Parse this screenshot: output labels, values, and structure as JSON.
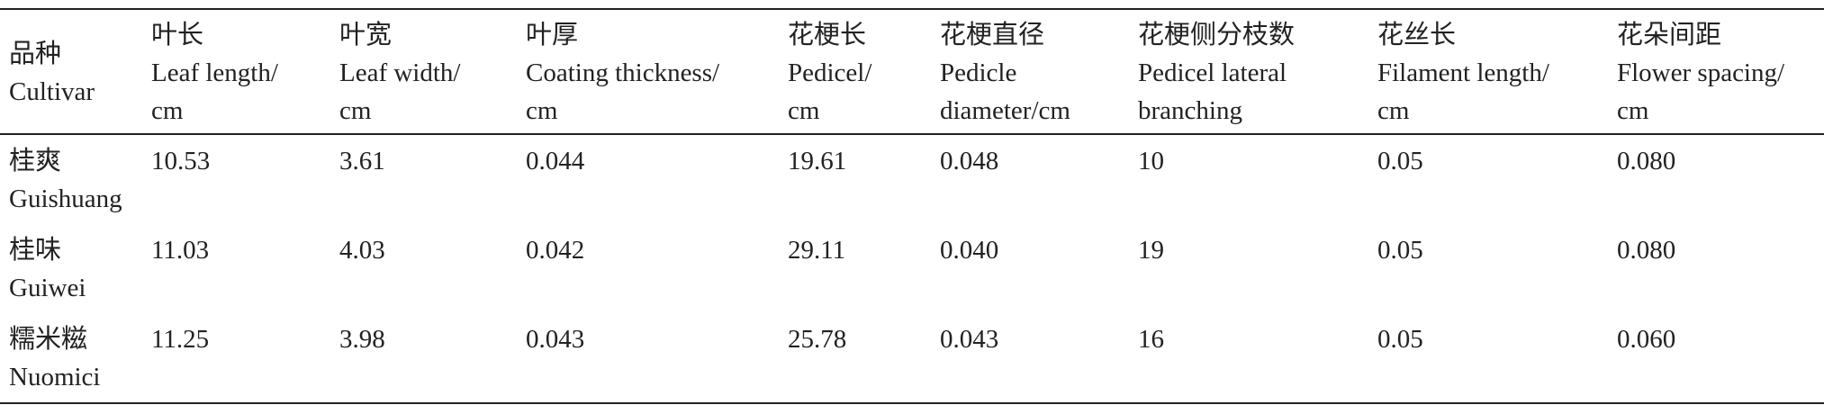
{
  "table": {
    "header": [
      [
        "品种",
        "Cultivar"
      ],
      [
        "叶长",
        "Leaf length/",
        "cm"
      ],
      [
        "叶宽",
        "Leaf width/",
        "cm"
      ],
      [
        "叶厚",
        "Coating thickness/",
        "cm"
      ],
      [
        "花梗长",
        "Pedicel/",
        "cm"
      ],
      [
        "花梗直径",
        "Pedicle",
        "diameter/cm"
      ],
      [
        "花梗侧分枝数",
        "Pedicel lateral",
        "branching"
      ],
      [
        "花丝长",
        "Filament length/",
        "cm"
      ],
      [
        "花朵间距",
        "Flower spacing/",
        "cm"
      ]
    ],
    "rows": [
      [
        [
          "桂爽",
          "Guishuang"
        ],
        "10.53",
        "3.61",
        "0.044",
        "19.61",
        "0.048",
        "10",
        "0.05",
        "0.080"
      ],
      [
        [
          "桂味",
          "Guiwei"
        ],
        "11.03",
        "4.03",
        "0.042",
        "29.11",
        "0.040",
        "19",
        "0.05",
        "0.080"
      ],
      [
        [
          "糯米糍",
          "Nuomici"
        ],
        "11.25",
        "3.98",
        "0.043",
        "25.78",
        "0.043",
        "16",
        "0.05",
        "0.060"
      ]
    ]
  }
}
